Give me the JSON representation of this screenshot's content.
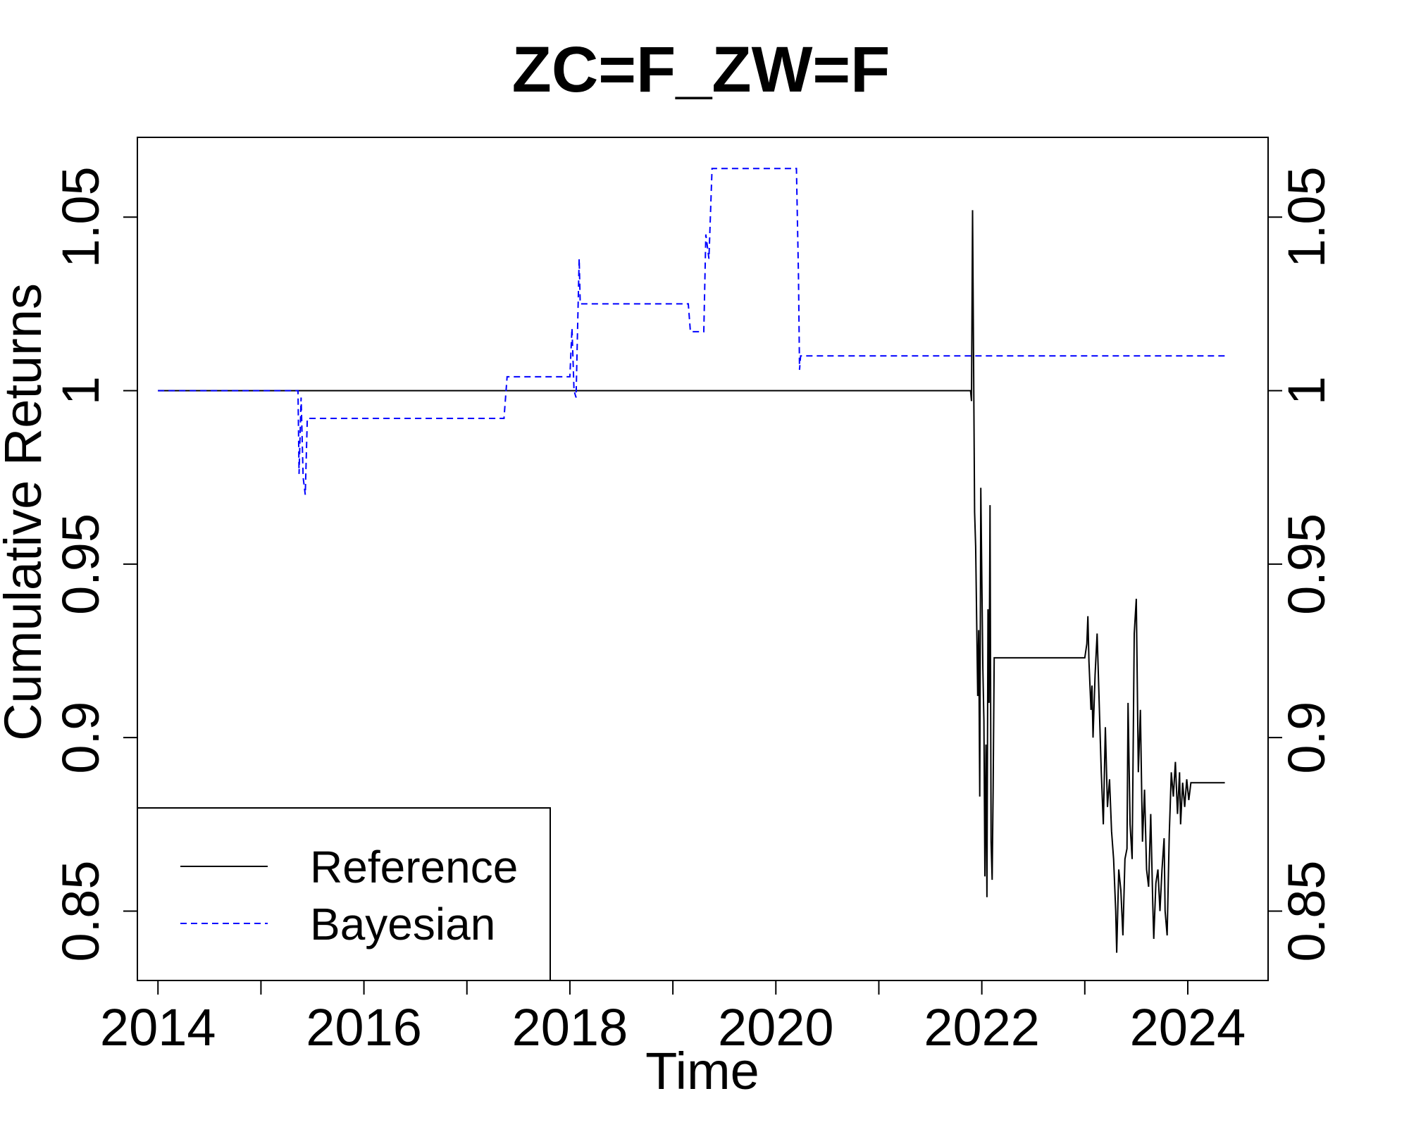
{
  "chart_data": {
    "type": "line",
    "title": "ZC=F_ZW=F",
    "xlabel": "Time",
    "ylabel": "Cumulative Returns",
    "xlim": [
      2013.8,
      2024.78
    ],
    "ylim": [
      0.83,
      1.073
    ],
    "x_ticks": [
      2014,
      2015,
      2016,
      2017,
      2018,
      2019,
      2020,
      2021,
      2022,
      2023,
      2024
    ],
    "x_tick_labels": [
      "2014",
      "",
      "2016",
      "",
      "2018",
      "",
      "2020",
      "",
      "2022",
      "",
      "2024"
    ],
    "y_ticks": [
      0.85,
      0.9,
      0.95,
      1.0,
      1.05
    ],
    "y_tick_labels": [
      "0.85",
      "0.9",
      "0.95",
      "1",
      "1.05"
    ],
    "grid": false,
    "legend_position": "bottom-left",
    "series": [
      {
        "name": "Reference",
        "color": "#000000",
        "style": "solid",
        "points": [
          [
            2014.0,
            1.0
          ],
          [
            2021.89,
            1.0
          ],
          [
            2021.9,
            0.997
          ],
          [
            2021.91,
            1.052
          ],
          [
            2021.93,
            0.965
          ],
          [
            2021.94,
            0.955
          ],
          [
            2021.96,
            0.912
          ],
          [
            2021.97,
            0.931
          ],
          [
            2021.98,
            0.883
          ],
          [
            2021.99,
            0.972
          ],
          [
            2022.01,
            0.92
          ],
          [
            2022.02,
            0.905
          ],
          [
            2022.03,
            0.86
          ],
          [
            2022.04,
            0.898
          ],
          [
            2022.05,
            0.854
          ],
          [
            2022.06,
            0.937
          ],
          [
            2022.07,
            0.91
          ],
          [
            2022.08,
            0.967
          ],
          [
            2022.09,
            0.87
          ],
          [
            2022.1,
            0.859
          ],
          [
            2022.11,
            0.885
          ],
          [
            2022.12,
            0.923
          ],
          [
            2023.0,
            0.923
          ],
          [
            2023.02,
            0.927
          ],
          [
            2023.03,
            0.935
          ],
          [
            2023.04,
            0.922
          ],
          [
            2023.06,
            0.908
          ],
          [
            2023.07,
            0.915
          ],
          [
            2023.08,
            0.9
          ],
          [
            2023.1,
            0.918
          ],
          [
            2023.12,
            0.93
          ],
          [
            2023.13,
            0.92
          ],
          [
            2023.15,
            0.9
          ],
          [
            2023.16,
            0.89
          ],
          [
            2023.18,
            0.875
          ],
          [
            2023.2,
            0.903
          ],
          [
            2023.22,
            0.88
          ],
          [
            2023.24,
            0.888
          ],
          [
            2023.26,
            0.873
          ],
          [
            2023.28,
            0.865
          ],
          [
            2023.3,
            0.85
          ],
          [
            2023.31,
            0.838
          ],
          [
            2023.33,
            0.862
          ],
          [
            2023.35,
            0.856
          ],
          [
            2023.37,
            0.843
          ],
          [
            2023.39,
            0.865
          ],
          [
            2023.41,
            0.868
          ],
          [
            2023.42,
            0.91
          ],
          [
            2023.44,
            0.875
          ],
          [
            2023.46,
            0.865
          ],
          [
            2023.48,
            0.93
          ],
          [
            2023.5,
            0.94
          ],
          [
            2023.52,
            0.89
          ],
          [
            2023.54,
            0.908
          ],
          [
            2023.56,
            0.87
          ],
          [
            2023.58,
            0.885
          ],
          [
            2023.6,
            0.862
          ],
          [
            2023.62,
            0.857
          ],
          [
            2023.64,
            0.878
          ],
          [
            2023.66,
            0.852
          ],
          [
            2023.67,
            0.842
          ],
          [
            2023.69,
            0.858
          ],
          [
            2023.71,
            0.862
          ],
          [
            2023.73,
            0.85
          ],
          [
            2023.75,
            0.862
          ],
          [
            2023.77,
            0.871
          ],
          [
            2023.78,
            0.85
          ],
          [
            2023.8,
            0.843
          ],
          [
            2023.82,
            0.872
          ],
          [
            2023.84,
            0.89
          ],
          [
            2023.86,
            0.883
          ],
          [
            2023.88,
            0.893
          ],
          [
            2023.9,
            0.878
          ],
          [
            2023.92,
            0.89
          ],
          [
            2023.93,
            0.875
          ],
          [
            2023.95,
            0.887
          ],
          [
            2023.97,
            0.88
          ],
          [
            2023.99,
            0.888
          ],
          [
            2024.01,
            0.882
          ],
          [
            2024.03,
            0.887
          ],
          [
            2024.05,
            0.887
          ],
          [
            2024.36,
            0.887
          ]
        ]
      },
      {
        "name": "Bayesian",
        "color": "#0000ff",
        "style": "dashed",
        "points": [
          [
            2014.0,
            1.0
          ],
          [
            2015.36,
            1.0
          ],
          [
            2015.37,
            0.976
          ],
          [
            2015.39,
            0.998
          ],
          [
            2015.41,
            0.975
          ],
          [
            2015.43,
            0.97
          ],
          [
            2015.45,
            0.992
          ],
          [
            2017.36,
            0.992
          ],
          [
            2017.39,
            1.004
          ],
          [
            2018.0,
            1.004
          ],
          [
            2018.02,
            1.018
          ],
          [
            2018.04,
            1.0
          ],
          [
            2018.06,
            0.998
          ],
          [
            2018.07,
            1.012
          ],
          [
            2018.09,
            1.038
          ],
          [
            2018.1,
            1.025
          ],
          [
            2019.15,
            1.025
          ],
          [
            2019.17,
            1.017
          ],
          [
            2019.3,
            1.017
          ],
          [
            2019.32,
            1.045
          ],
          [
            2019.35,
            1.038
          ],
          [
            2019.38,
            1.064
          ],
          [
            2020.2,
            1.064
          ],
          [
            2020.22,
            1.033
          ],
          [
            2020.23,
            1.006
          ],
          [
            2020.24,
            1.01
          ],
          [
            2024.36,
            1.01
          ]
        ]
      }
    ]
  }
}
